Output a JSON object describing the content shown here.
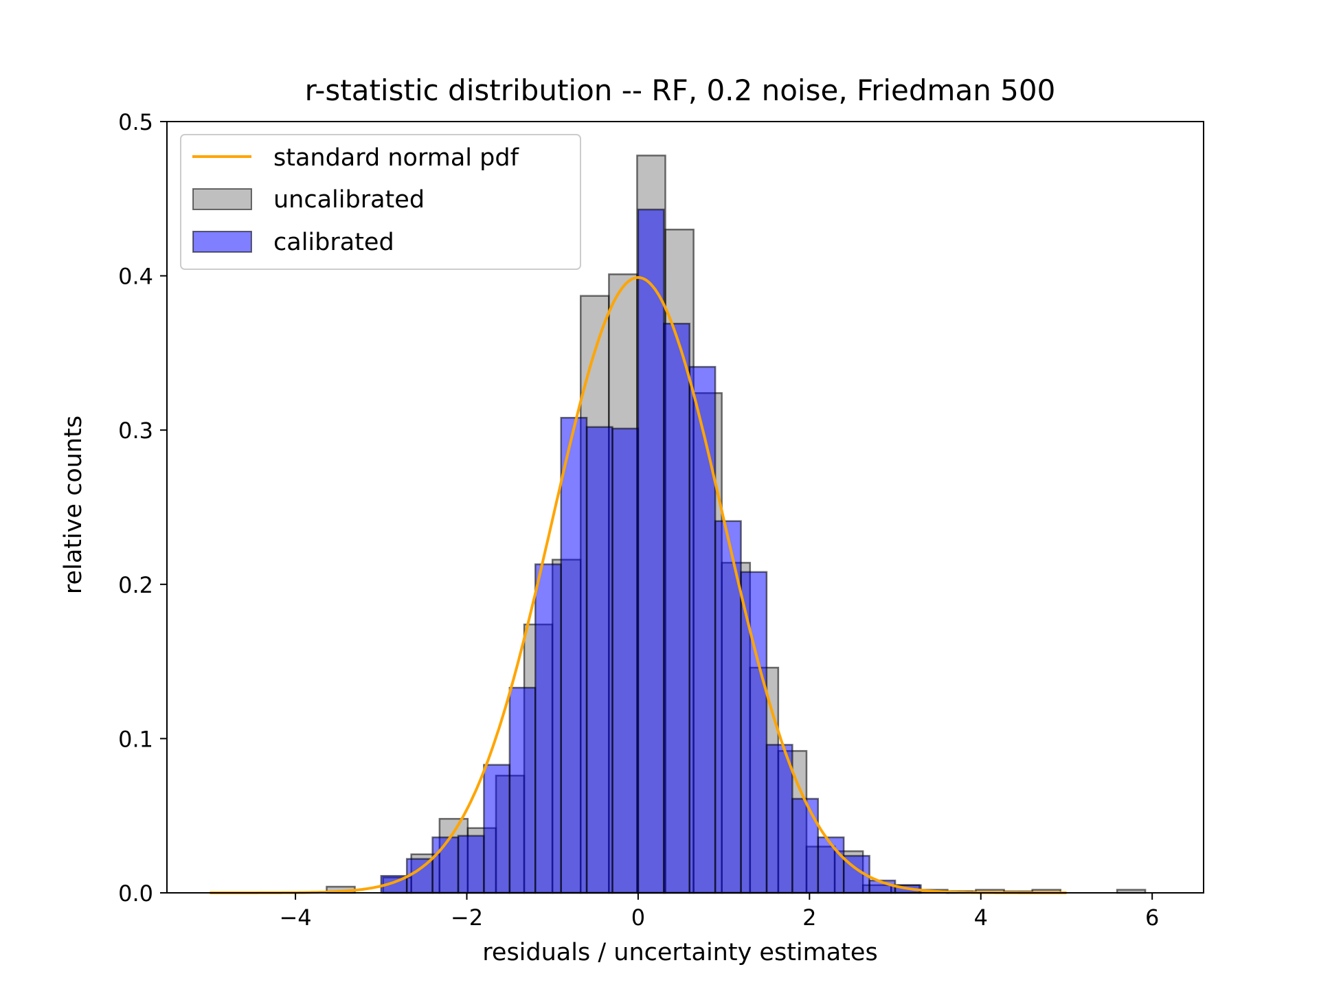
{
  "chart_data": {
    "type": "bar",
    "title": "r-statistic distribution -- RF, 0.2 noise, Friedman 500",
    "xlabel": "residuals / uncertainty estimates",
    "ylabel": "relative counts",
    "xlim": [
      -5.5,
      6.6
    ],
    "ylim": [
      0,
      0.5
    ],
    "xticks": [
      -4,
      -2,
      0,
      2,
      4,
      6
    ],
    "xtick_labels": [
      "−4",
      "−2",
      "0",
      "2",
      "4",
      "6"
    ],
    "yticks": [
      0.0,
      0.1,
      0.2,
      0.3,
      0.4,
      0.5
    ],
    "ytick_labels": [
      "0.0",
      "0.1",
      "0.2",
      "0.3",
      "0.4",
      "0.5"
    ],
    "grid": false,
    "legend_position": "top-left",
    "series": [
      {
        "name": "uncalibrated",
        "color": "#808080",
        "edge": "#000000",
        "alpha": 0.5,
        "bin_width": 0.3294,
        "bin_starts": [
          -3.636,
          -3.306,
          -2.977,
          -2.648,
          -2.318,
          -1.989,
          -1.659,
          -1.33,
          -1.0,
          -0.671,
          -0.341,
          -0.012,
          0.318,
          0.647,
          0.977,
          1.306,
          1.636,
          1.965,
          2.295,
          2.624,
          2.954,
          3.283,
          3.613,
          3.942,
          4.272,
          4.601,
          4.931,
          5.26,
          5.59
        ],
        "values": [
          0.004,
          0.0,
          0.01,
          0.025,
          0.048,
          0.042,
          0.076,
          0.174,
          0.216,
          0.387,
          0.401,
          0.478,
          0.43,
          0.324,
          0.214,
          0.146,
          0.092,
          0.03,
          0.027,
          0.005,
          0.005,
          0.002,
          0.001,
          0.002,
          0.001,
          0.002,
          0.0,
          0.0,
          0.002
        ]
      },
      {
        "name": "calibrated",
        "color": "#0000ff",
        "edge": "#000000",
        "alpha": 0.5,
        "bin_width": 0.3,
        "bin_starts": [
          -3.0,
          -2.7,
          -2.4,
          -2.1,
          -1.8,
          -1.5,
          -1.2,
          -0.9,
          -0.6,
          -0.3,
          0.0,
          0.3,
          0.6,
          0.9,
          1.2,
          1.5,
          1.8,
          2.1,
          2.4,
          2.7,
          3.0,
          3.3,
          3.6,
          3.9,
          4.2,
          4.5,
          4.8
        ],
        "values": [
          0.011,
          0.022,
          0.036,
          0.037,
          0.083,
          0.133,
          0.213,
          0.308,
          0.302,
          0.301,
          0.443,
          0.369,
          0.341,
          0.241,
          0.208,
          0.096,
          0.061,
          0.036,
          0.024,
          0.008,
          0.005,
          0.0,
          0.001,
          0.0,
          0.0,
          0.0,
          0.0
        ]
      },
      {
        "name": "standard normal pdf",
        "type": "line",
        "color": "#ffa500",
        "x_range": [
          -5.0,
          5.0
        ],
        "function": "standard normal pdf"
      }
    ]
  }
}
